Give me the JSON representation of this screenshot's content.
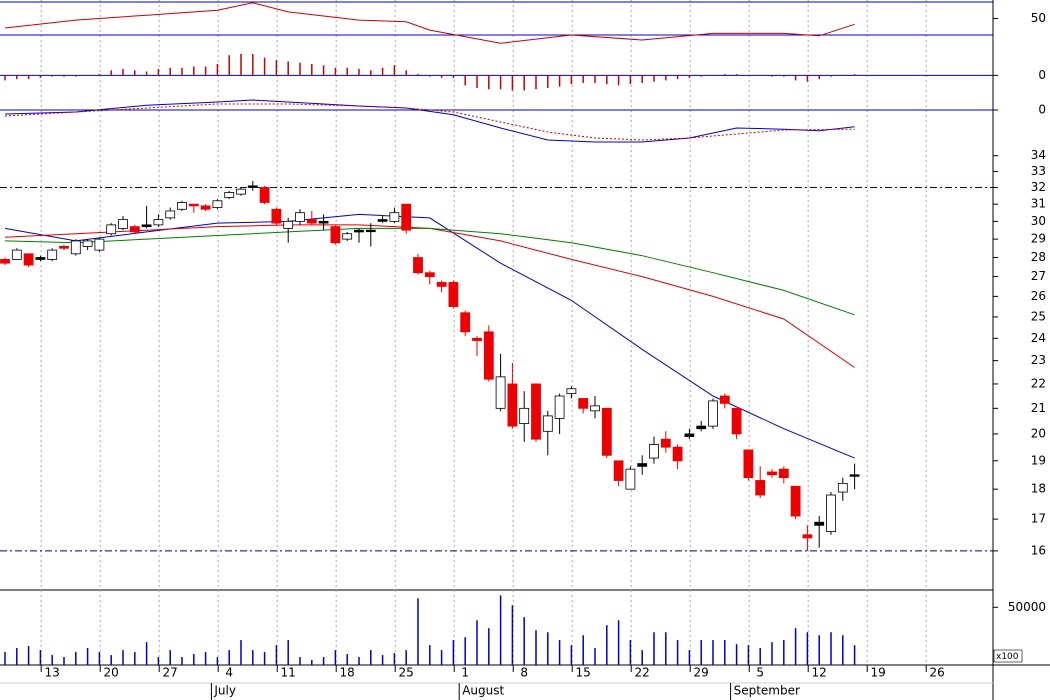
{
  "chart_data": [
    {
      "type": "line",
      "ylim": [
        30,
        70
      ],
      "yticks": [
        50
      ],
      "series": [
        {
          "color": "#cc0000",
          "style": "solid",
          "x": [
            0,
            6,
            12,
            18,
            21,
            24,
            30,
            34,
            36,
            42,
            48,
            54,
            60,
            66,
            69,
            72
          ],
          "values": [
            38.5,
            48,
            54,
            60,
            69,
            58,
            48,
            46,
            36,
            20,
            30,
            24,
            32,
            32,
            29,
            43
          ]
        }
      ]
    },
    {
      "type": "bar",
      "color": "#cc0000",
      "ylim": [
        -0.7,
        1.6
      ],
      "yticks": [
        0
      ],
      "values": [
        -0.2,
        -0.15,
        -0.15,
        -0.1,
        -0.05,
        -0.05,
        -0.05,
        0,
        0.05,
        0.2,
        0.25,
        0.2,
        0.15,
        0.25,
        0.3,
        0.3,
        0.35,
        0.35,
        0.45,
        0.8,
        0.85,
        0.85,
        0.7,
        0.6,
        0.55,
        0.5,
        0.45,
        0.4,
        0.3,
        0.3,
        0.25,
        0.2,
        0.3,
        0.4,
        0.2,
        0.05,
        -0.05,
        -0.1,
        -0.1,
        -0.4,
        -0.5,
        -0.55,
        -0.55,
        -0.6,
        -0.6,
        -0.55,
        -0.5,
        -0.45,
        -0.35,
        -0.3,
        -0.3,
        -0.35,
        -0.4,
        -0.35,
        -0.3,
        -0.25,
        -0.2,
        -0.15,
        -0.1,
        -0.05,
        0,
        0.05,
        0.05,
        0,
        0,
        -0.05,
        -0.05,
        -0.2,
        -0.25,
        -0.15,
        -0.05,
        0.02,
        0.05,
        null,
        null,
        null,
        null,
        null,
        null,
        null,
        null,
        null,
        null,
        null
      ]
    },
    {
      "type": "line",
      "ylim": [
        -1.0,
        0.85
      ],
      "yticks": [
        0
      ],
      "series": [
        {
          "color": "#0000cc",
          "style": "solid",
          "x": [
            0,
            6,
            12,
            18,
            21,
            24,
            30,
            34,
            38,
            42,
            46,
            50,
            54,
            58,
            62,
            66,
            69,
            72
          ],
          "values": [
            -0.1,
            -0.05,
            0.12,
            0.2,
            0.25,
            0.2,
            0.1,
            0.05,
            -0.12,
            -0.45,
            -0.75,
            -0.8,
            -0.8,
            -0.7,
            -0.45,
            -0.48,
            -0.52,
            -0.42
          ]
        },
        {
          "color": "#cc0000",
          "style": "dotted",
          "x": [
            0,
            6,
            12,
            18,
            24,
            30,
            34,
            38,
            42,
            46,
            50,
            54,
            58,
            62,
            66,
            72
          ],
          "values": [
            -0.15,
            -0.05,
            0.05,
            0.15,
            0.15,
            0.1,
            0.05,
            -0.05,
            -0.3,
            -0.55,
            -0.7,
            -0.75,
            -0.7,
            -0.6,
            -0.5,
            -0.48
          ]
        }
      ]
    },
    {
      "type": "candlestick",
      "log_scale": true,
      "ylim": [
        14.85,
        37.1
      ],
      "yticks": [
        16,
        17,
        18,
        19,
        20,
        21,
        22,
        23,
        24,
        25,
        26,
        27,
        28,
        29,
        30,
        31,
        32,
        33,
        34
      ],
      "grid": "x",
      "hlines": [
        32,
        16
      ],
      "hline_color": "#000080",
      "up_color": "#ffffff",
      "down_color": "#ee0000",
      "doji_color": "#000000",
      "categories": [
        null,
        null,
        null,
        null,
        "13",
        null,
        null,
        null,
        null,
        "20",
        null,
        null,
        null,
        null,
        "27",
        null,
        null,
        null,
        null,
        "4",
        null,
        null,
        null,
        null,
        "11",
        null,
        null,
        null,
        null,
        "18",
        null,
        null,
        null,
        null,
        "25",
        null,
        null,
        null,
        null,
        "1",
        null,
        null,
        null,
        null,
        "8",
        null,
        null,
        null,
        null,
        "15",
        null,
        null,
        null,
        null,
        "22",
        null,
        null,
        null,
        null,
        "29",
        null,
        null,
        null,
        null,
        "5",
        null,
        null,
        null,
        null,
        "12",
        null,
        null,
        null,
        null,
        "19",
        null,
        null,
        null,
        null,
        "26",
        null,
        null,
        null,
        null
      ],
      "months": [
        null,
        null,
        null,
        null,
        null,
        null,
        null,
        null,
        null,
        null,
        null,
        null,
        null,
        null,
        null,
        null,
        null,
        null,
        "July",
        null,
        null,
        null,
        null,
        null,
        null,
        null,
        null,
        null,
        null,
        null,
        null,
        null,
        null,
        null,
        null,
        null,
        null,
        null,
        null,
        "August",
        null,
        null,
        null,
        null,
        null,
        null,
        null,
        null,
        null,
        null,
        null,
        null,
        null,
        null,
        null,
        null,
        null,
        null,
        null,
        null,
        null,
        null,
        "September",
        null,
        null,
        null,
        null,
        null,
        null,
        null,
        null,
        null,
        null,
        null,
        null,
        null,
        null,
        null,
        null,
        null,
        null,
        null
      ],
      "open": [
        27.9,
        27.9,
        28.2,
        27.9,
        27.9,
        28.6,
        28.2,
        28.6,
        28.4,
        29.3,
        29.6,
        29.7,
        29.7,
        29.8,
        30.2,
        30.7,
        31.0,
        30.9,
        30.8,
        31.4,
        31.6,
        32.1,
        32.0,
        30.7,
        29.6,
        30.0,
        30.1,
        29.9,
        29.7,
        29.0,
        29.4,
        29.5,
        30.0,
        30.0,
        31.0,
        28.0,
        27.2,
        26.7,
        26.7,
        25.2,
        24.0,
        24.3,
        21.0,
        22.0,
        20.4,
        22.0,
        20.1,
        20.6,
        21.6,
        21.4,
        20.9,
        21.0,
        19.0,
        18.0,
        18.8,
        19.1,
        19.8,
        19.5,
        19.9,
        20.2,
        20.3,
        21.5,
        21.0,
        19.4,
        18.3,
        18.6,
        18.7,
        18.1,
        16.5,
        16.8,
        16.6,
        17.9,
        18.5,
        null,
        null,
        null,
        null,
        null,
        null,
        null,
        null,
        null,
        null,
        null
      ],
      "high": [
        28.0,
        28.5,
        28.2,
        28.1,
        28.5,
        28.7,
        29.0,
        29.0,
        29.1,
        29.9,
        30.3,
        29.8,
        30.9,
        30.4,
        30.8,
        31.2,
        31.0,
        31.0,
        31.3,
        31.8,
        32.0,
        32.4,
        32.1,
        30.8,
        30.2,
        30.7,
        30.6,
        30.4,
        29.8,
        29.4,
        29.6,
        29.9,
        30.3,
        30.8,
        31.0,
        28.2,
        27.3,
        26.8,
        26.8,
        25.3,
        24.1,
        24.6,
        23.3,
        22.9,
        21.7,
        22.0,
        20.9,
        21.6,
        21.9,
        21.4,
        21.5,
        21.0,
        19.0,
        18.8,
        19.2,
        19.9,
        20.1,
        19.6,
        20.2,
        20.5,
        21.4,
        21.6,
        21.0,
        19.4,
        18.8,
        18.7,
        18.8,
        18.1,
        16.8,
        17.1,
        17.9,
        18.4,
        18.9,
        null,
        null,
        null,
        null,
        null,
        null,
        null,
        null,
        null,
        null,
        null
      ],
      "low": [
        27.6,
        27.9,
        27.5,
        27.8,
        27.8,
        28.4,
        28.1,
        28.4,
        28.3,
        29.2,
        29.5,
        29.3,
        29.6,
        29.7,
        30.1,
        30.6,
        30.5,
        30.6,
        30.7,
        31.3,
        31.5,
        31.8,
        31.0,
        29.8,
        28.8,
        29.8,
        29.8,
        29.5,
        28.7,
        28.9,
        28.8,
        28.6,
        29.9,
        29.9,
        29.3,
        27.1,
        26.6,
        26.2,
        25.4,
        24.1,
        23.2,
        22.1,
        20.9,
        20.2,
        19.7,
        19.7,
        19.2,
        20.0,
        21.4,
        20.8,
        20.6,
        19.1,
        18.1,
        18.0,
        18.5,
        18.9,
        19.3,
        18.7,
        19.8,
        20.1,
        20.2,
        21.0,
        19.8,
        18.3,
        17.7,
        18.4,
        18.2,
        17.0,
        16.0,
        16.1,
        16.5,
        17.6,
        18.0,
        null,
        null,
        null,
        null,
        null,
        null,
        null,
        null,
        null,
        null,
        null
      ],
      "close": [
        27.7,
        28.4,
        27.6,
        28.0,
        28.4,
        28.5,
        28.9,
        28.9,
        29.0,
        29.8,
        30.1,
        29.4,
        29.8,
        30.1,
        30.6,
        31.1,
        30.9,
        30.7,
        31.2,
        31.7,
        31.9,
        32.1,
        31.1,
        29.9,
        30.0,
        30.5,
        29.9,
        30.0,
        28.8,
        29.3,
        29.5,
        29.5,
        30.1,
        30.5,
        29.5,
        27.2,
        27.0,
        26.5,
        25.5,
        24.3,
        23.9,
        22.2,
        22.3,
        20.3,
        21.0,
        19.8,
        20.7,
        21.5,
        21.8,
        21.0,
        21.1,
        19.2,
        18.3,
        18.7,
        18.9,
        19.6,
        19.5,
        19.0,
        20.0,
        20.3,
        21.3,
        21.2,
        20.0,
        18.4,
        17.8,
        18.5,
        18.4,
        17.1,
        16.4,
        16.9,
        17.8,
        18.2,
        18.5,
        null,
        null,
        null,
        null,
        null,
        null,
        null,
        null,
        null,
        null,
        null
      ],
      "series": [
        {
          "color": "#0000cc",
          "style": "solid",
          "x": [
            0,
            6,
            12,
            18,
            24,
            30,
            36,
            42,
            48,
            54,
            60,
            66,
            72
          ],
          "values": [
            29.6,
            28.9,
            29.4,
            29.9,
            30.0,
            30.4,
            30.2,
            27.7,
            25.8,
            23.5,
            21.5,
            20.2,
            19.1
          ]
        },
        {
          "color": "#dd0000",
          "style": "solid",
          "x": [
            0,
            6,
            12,
            18,
            24,
            30,
            36,
            42,
            48,
            54,
            60,
            66,
            72
          ],
          "values": [
            29.1,
            29.3,
            29.5,
            29.7,
            29.8,
            29.8,
            29.6,
            28.9,
            27.9,
            27.0,
            26.0,
            24.9,
            22.7
          ]
        },
        {
          "color": "#008000",
          "style": "solid",
          "x": [
            0,
            6,
            12,
            18,
            24,
            30,
            36,
            42,
            48,
            54,
            60,
            66,
            72
          ],
          "values": [
            28.9,
            28.8,
            29.0,
            29.2,
            29.4,
            29.6,
            29.6,
            29.3,
            28.8,
            28.1,
            27.2,
            26.3,
            25.1
          ]
        }
      ]
    },
    {
      "type": "bar",
      "color": "#0000cc",
      "ylim": [
        0,
        65000
      ],
      "yticks": [
        50000
      ],
      "unit_label": "x100",
      "values": [
        11200,
        14700,
        16400,
        12900,
        8600,
        6900,
        11200,
        14700,
        11200,
        8600,
        12900,
        11200,
        19800,
        6900,
        12900,
        6900,
        9500,
        11200,
        6900,
        12900,
        21600,
        12900,
        11200,
        17200,
        21600,
        6900,
        4300,
        6900,
        12900,
        9500,
        6900,
        12900,
        8600,
        10300,
        12900,
        57800,
        17200,
        12900,
        21600,
        24100,
        38800,
        31900,
        60300,
        51700,
        41400,
        30200,
        28400,
        21600,
        17200,
        25800,
        14700,
        34500,
        38800,
        21600,
        12900,
        28400,
        28400,
        21600,
        12900,
        21600,
        21600,
        21600,
        18100,
        17200,
        14700,
        19800,
        21600,
        31900,
        28400,
        25800,
        28400,
        25800,
        17200,
        null,
        null,
        null,
        null,
        null,
        null,
        null,
        null,
        null,
        null,
        null
      ]
    }
  ]
}
